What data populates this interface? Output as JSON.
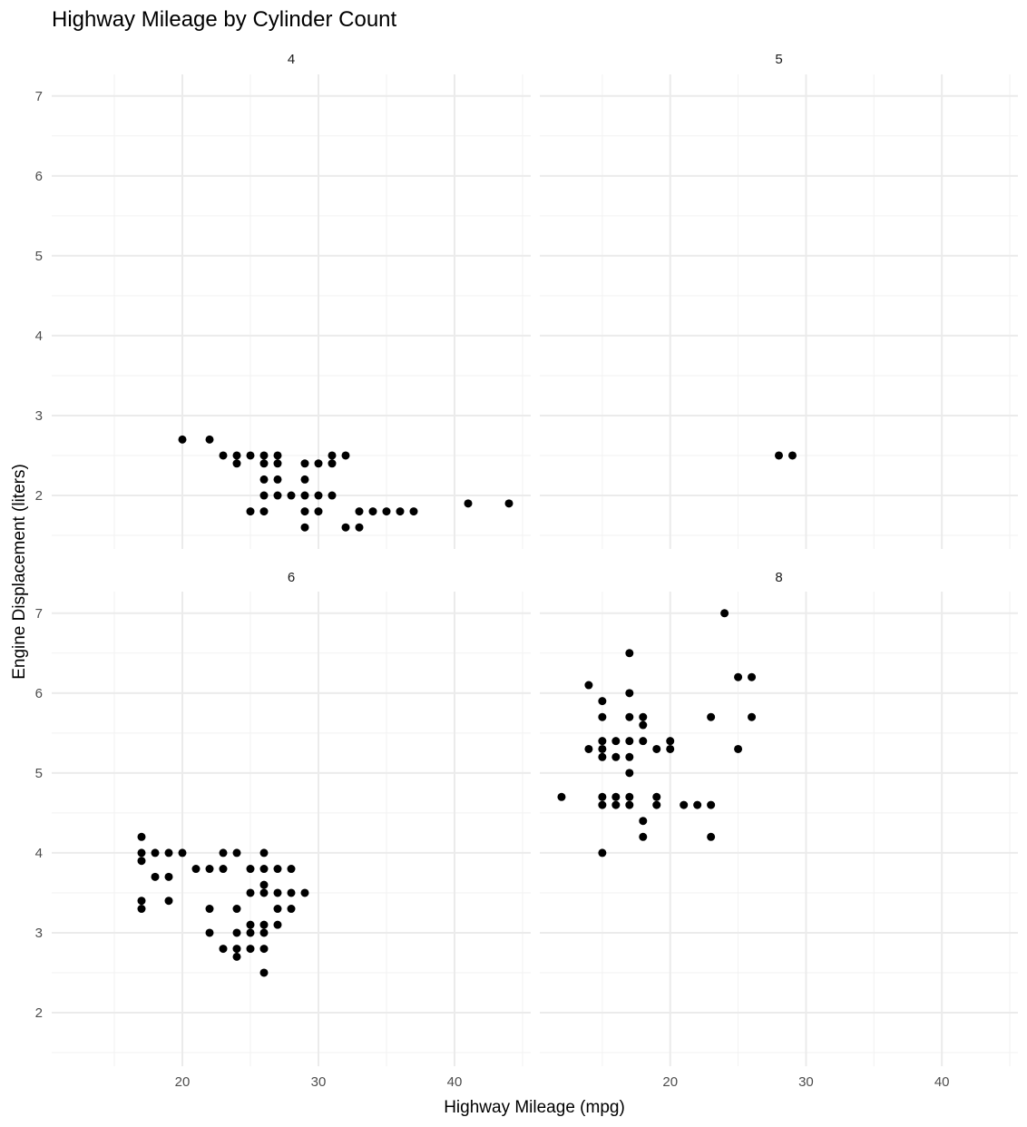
{
  "chart_data": {
    "type": "scatter",
    "title": "Highway Mileage by Cylinder Count",
    "xlabel": "Highway Mileage (mpg)",
    "ylabel": "Engine Displacement (liters)",
    "xlim": [
      10.4,
      45.6
    ],
    "ylim": [
      1.33,
      7.27
    ],
    "x_ticks": [
      "20",
      "30",
      "40"
    ],
    "x_tick_values": [
      20,
      30,
      40
    ],
    "y_ticks": [
      "2",
      "3",
      "4",
      "5",
      "6",
      "7"
    ],
    "y_tick_values": [
      2,
      3,
      4,
      5,
      6,
      7
    ],
    "grid": true,
    "facet_by": "cyl",
    "panels": [
      {
        "label": "4",
        "points": [
          [
            20,
            2.7
          ],
          [
            22,
            2.7
          ],
          [
            23,
            2.5
          ],
          [
            24,
            2.5
          ],
          [
            24,
            2.4
          ],
          [
            25,
            2.5
          ],
          [
            26,
            2.5
          ],
          [
            27,
            2.5
          ],
          [
            26,
            2.4
          ],
          [
            27,
            2.4
          ],
          [
            26,
            2.2
          ],
          [
            27,
            2.2
          ],
          [
            29,
            2.2
          ],
          [
            29,
            2.4
          ],
          [
            30,
            2.4
          ],
          [
            31,
            2.4
          ],
          [
            31,
            2.5
          ],
          [
            32,
            2.5
          ],
          [
            26,
            2.0
          ],
          [
            27,
            2.0
          ],
          [
            28,
            2.0
          ],
          [
            29,
            2.0
          ],
          [
            30,
            2.0
          ],
          [
            31,
            2.0
          ],
          [
            25,
            1.8
          ],
          [
            26,
            1.8
          ],
          [
            29,
            1.8
          ],
          [
            30,
            1.8
          ],
          [
            33,
            1.8
          ],
          [
            34,
            1.8
          ],
          [
            35,
            1.8
          ],
          [
            36,
            1.8
          ],
          [
            37,
            1.8
          ],
          [
            29,
            1.6
          ],
          [
            32,
            1.6
          ],
          [
            33,
            1.6
          ],
          [
            41,
            1.9
          ],
          [
            44,
            1.9
          ]
        ]
      },
      {
        "label": "5",
        "points": [
          [
            28,
            2.5
          ],
          [
            29,
            2.5
          ]
        ]
      },
      {
        "label": "6",
        "points": [
          [
            17,
            4.2
          ],
          [
            17,
            4.0
          ],
          [
            17,
            3.9
          ],
          [
            18,
            4.0
          ],
          [
            19,
            4.0
          ],
          [
            20,
            4.0
          ],
          [
            21,
            3.8
          ],
          [
            22,
            3.8
          ],
          [
            23,
            3.8
          ],
          [
            23,
            4.0
          ],
          [
            24,
            4.0
          ],
          [
            26,
            4.0
          ],
          [
            25,
            3.8
          ],
          [
            26,
            3.8
          ],
          [
            27,
            3.8
          ],
          [
            28,
            3.8
          ],
          [
            18,
            3.7
          ],
          [
            19,
            3.7
          ],
          [
            26,
            3.6
          ],
          [
            25,
            3.5
          ],
          [
            26,
            3.5
          ],
          [
            27,
            3.5
          ],
          [
            28,
            3.5
          ],
          [
            29,
            3.5
          ],
          [
            17,
            3.4
          ],
          [
            17,
            3.3
          ],
          [
            19,
            3.4
          ],
          [
            22,
            3.3
          ],
          [
            24,
            3.3
          ],
          [
            27,
            3.3
          ],
          [
            28,
            3.3
          ],
          [
            25,
            3.1
          ],
          [
            26,
            3.1
          ],
          [
            27,
            3.1
          ],
          [
            22,
            3.0
          ],
          [
            24,
            3.0
          ],
          [
            25,
            3.0
          ],
          [
            26,
            3.0
          ],
          [
            23,
            2.8
          ],
          [
            24,
            2.8
          ],
          [
            25,
            2.8
          ],
          [
            26,
            2.8
          ],
          [
            24,
            2.7
          ],
          [
            26,
            2.5
          ]
        ]
      },
      {
        "label": "8",
        "points": [
          [
            12,
            4.7
          ],
          [
            14,
            6.1
          ],
          [
            14,
            5.3
          ],
          [
            15,
            5.9
          ],
          [
            15,
            5.7
          ],
          [
            15,
            5.4
          ],
          [
            15,
            5.3
          ],
          [
            15,
            5.2
          ],
          [
            15,
            4.7
          ],
          [
            15,
            4.6
          ],
          [
            15,
            4.0
          ],
          [
            16,
            5.4
          ],
          [
            16,
            5.2
          ],
          [
            16,
            4.7
          ],
          [
            16,
            4.6
          ],
          [
            17,
            6.5
          ],
          [
            17,
            6.0
          ],
          [
            17,
            5.7
          ],
          [
            17,
            5.4
          ],
          [
            17,
            5.2
          ],
          [
            17,
            5.0
          ],
          [
            17,
            4.7
          ],
          [
            17,
            4.6
          ],
          [
            18,
            5.7
          ],
          [
            18,
            5.6
          ],
          [
            18,
            5.4
          ],
          [
            18,
            4.4
          ],
          [
            18,
            4.2
          ],
          [
            19,
            5.3
          ],
          [
            19,
            4.7
          ],
          [
            19,
            4.6
          ],
          [
            20,
            5.4
          ],
          [
            20,
            5.3
          ],
          [
            21,
            4.6
          ],
          [
            22,
            4.6
          ],
          [
            23,
            5.7
          ],
          [
            23,
            4.6
          ],
          [
            23,
            4.2
          ],
          [
            24,
            7.0
          ],
          [
            25,
            6.2
          ],
          [
            25,
            5.3
          ],
          [
            26,
            6.2
          ],
          [
            26,
            5.7
          ]
        ]
      }
    ]
  }
}
